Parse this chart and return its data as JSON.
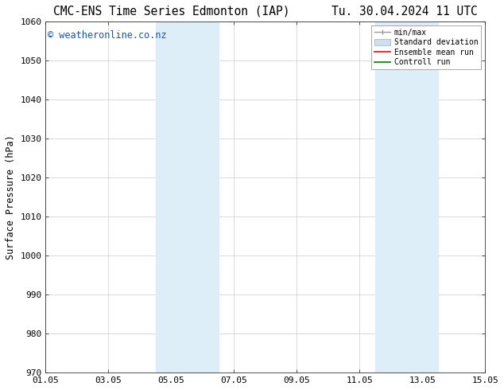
{
  "title": "CMC-ENS Time Series Edmonton (IAP)      Tu. 30.04.2024 11 UTC",
  "ylabel": "Surface Pressure (hPa)",
  "ylim": [
    970,
    1060
  ],
  "yticks": [
    970,
    980,
    990,
    1000,
    1010,
    1020,
    1030,
    1040,
    1050,
    1060
  ],
  "xtick_labels": [
    "01.05",
    "03.05",
    "05.05",
    "07.05",
    "09.05",
    "11.05",
    "13.05",
    "15.05"
  ],
  "xtick_positions": [
    0,
    2,
    4,
    6,
    8,
    10,
    12,
    14
  ],
  "xlim": [
    0,
    14
  ],
  "shaded_regions": [
    {
      "start": 3.5,
      "end": 5.5,
      "color": "#ddeef8"
    },
    {
      "start": 10.5,
      "end": 12.5,
      "color": "#ddeef8"
    }
  ],
  "watermark": "© weatheronline.co.nz",
  "watermark_color": "#1155bb",
  "watermark_fontsize": 8.5,
  "legend_items": [
    {
      "label": "min/max",
      "color": "#aaaaaa"
    },
    {
      "label": "Standard deviation",
      "color": "#cce0f0"
    },
    {
      "label": "Ensemble mean run",
      "color": "#ff0000"
    },
    {
      "label": "Controll run",
      "color": "#008000"
    }
  ],
  "bg_color": "#ffffff",
  "grid_color": "#cccccc",
  "title_fontsize": 10.5,
  "ylabel_fontsize": 8.5,
  "tick_fontsize": 8
}
